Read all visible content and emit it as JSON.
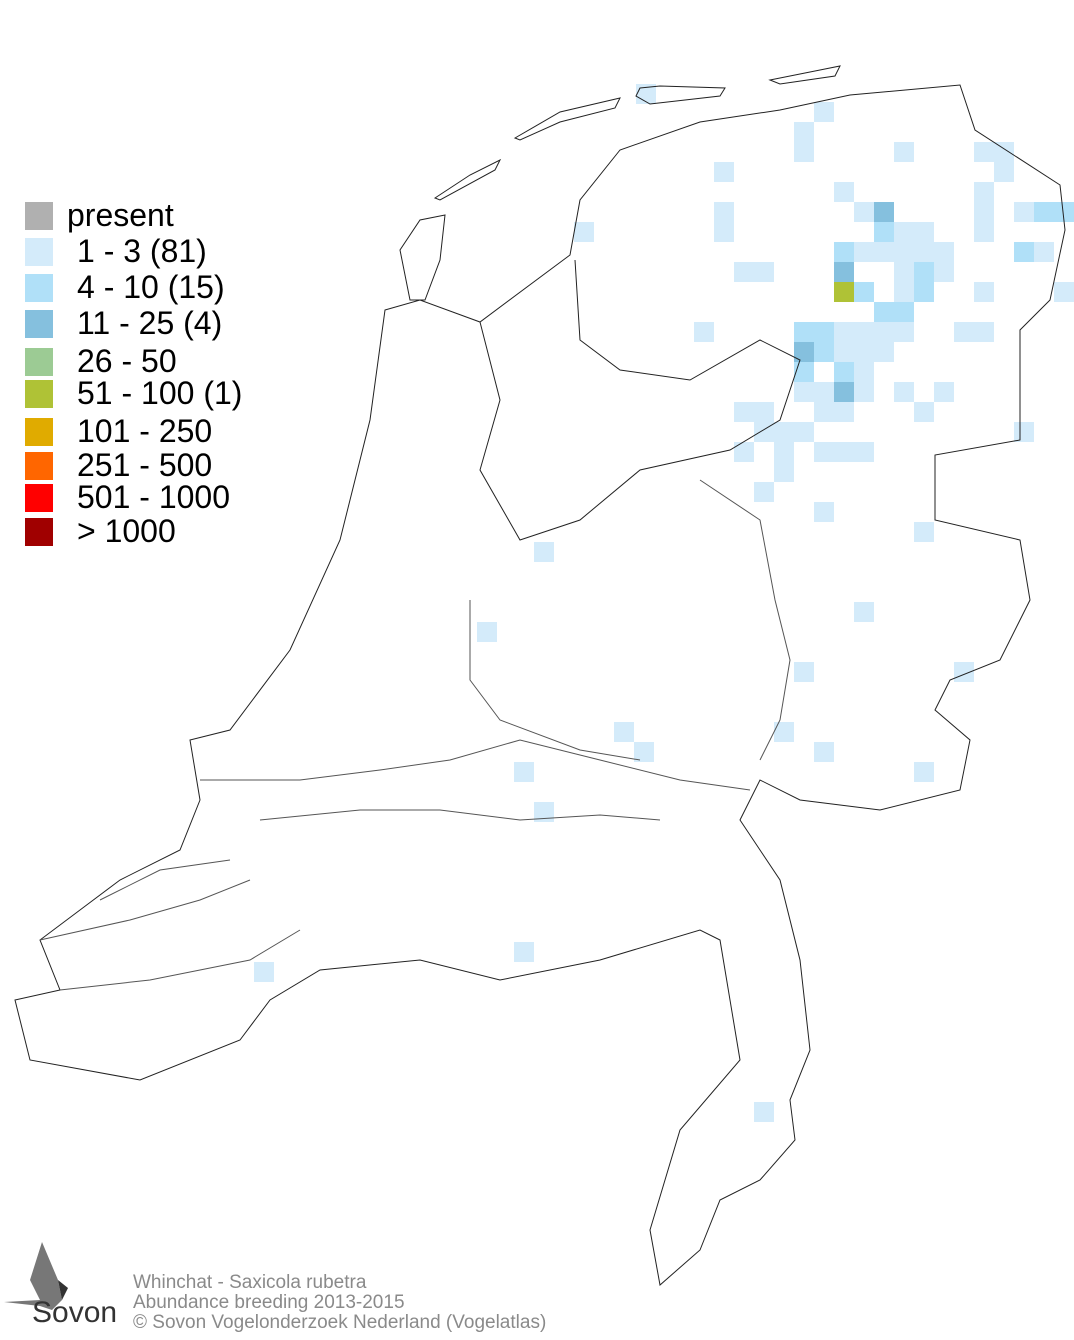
{
  "legend": {
    "items": [
      {
        "label": "present",
        "color": "#b0b0b0"
      },
      {
        "label": "1 - 3 (81)",
        "color": "#d4ebfa"
      },
      {
        "label": "4 - 10 (15)",
        "color": "#b0e0f8"
      },
      {
        "label": "11 - 25 (4)",
        "color": "#85c0de"
      },
      {
        "label": "26 - 50",
        "color": "#9ccb94"
      },
      {
        "label": "51 - 100 (1)",
        "color": "#afc236"
      },
      {
        "label": "101 - 250",
        "color": "#e0ab00"
      },
      {
        "label": "251 - 500",
        "color": "#ff6600"
      },
      {
        "label": "501 - 1000",
        "color": "#ff0000"
      },
      {
        "label": "> 1000",
        "color": "#a00000"
      }
    ]
  },
  "footer": {
    "species": "Whinchat - Saxicola rubetra",
    "subtitle": "Abundance breeding 2013-2015",
    "copyright": "© Sovon Vogelonderzoek Nederland (Vogelatlas)"
  },
  "logo": {
    "text": "Sovon"
  }
}
